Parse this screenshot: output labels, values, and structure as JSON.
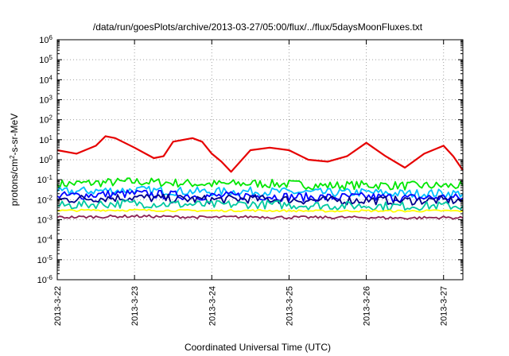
{
  "chart_data": {
    "type": "line",
    "title": "/data/run/goesPlots/archive/2013-03-27/05:00/flux/../flux/5daysMoonFluxes.txt",
    "xlabel": "Coordinated Universal Time (UTC)",
    "ylabel": "protons/cm2-s-sr-MeV",
    "ylabel_parts": {
      "pre": "protons/cm",
      "sup": "2",
      "post": "-s-sr-MeV"
    },
    "y_scale": "log",
    "ylim": [
      1e-06,
      1000000.0
    ],
    "xlim": [
      "2013-03-22T00:00",
      "2013-03-27T06:00"
    ],
    "grid": true,
    "legend": "none",
    "x_ticks": [
      "2013-3-22",
      "2013-3-23",
      "2013-3-24",
      "2013-3-25",
      "2013-3-26",
      "2013-3-27"
    ],
    "y_ticks": [
      {
        "value": 1e-06,
        "base": "10",
        "exp": "-6"
      },
      {
        "value": 1e-05,
        "base": "10",
        "exp": "-5"
      },
      {
        "value": 0.0001,
        "base": "10",
        "exp": "-4"
      },
      {
        "value": 0.001,
        "base": "10",
        "exp": "-3"
      },
      {
        "value": 0.01,
        "base": "10",
        "exp": "-2"
      },
      {
        "value": 0.1,
        "base": "10",
        "exp": "-1"
      },
      {
        "value": 1.0,
        "base": "10",
        "exp": "0"
      },
      {
        "value": 10.0,
        "base": "10",
        "exp": "1"
      },
      {
        "value": 100.0,
        "base": "10",
        "exp": "2"
      },
      {
        "value": 1000.0,
        "base": "10",
        "exp": "3"
      },
      {
        "value": 10000.0,
        "base": "10",
        "exp": "4"
      },
      {
        "value": 100000.0,
        "base": "10",
        "exp": "5"
      },
      {
        "value": 1000000.0,
        "base": "10",
        "exp": "6"
      }
    ],
    "series": [
      {
        "color": "#e60000",
        "x": [
          "2013-03-22T00:00",
          "2013-03-22T06:00",
          "2013-03-22T12:00",
          "2013-03-22T15:00",
          "2013-03-22T18:00",
          "2013-03-23T00:00",
          "2013-03-23T06:00",
          "2013-03-23T09:00",
          "2013-03-23T12:00",
          "2013-03-23T18:00",
          "2013-03-23T21:00",
          "2013-03-24T00:00",
          "2013-03-24T03:00",
          "2013-03-24T06:00",
          "2013-03-24T12:00",
          "2013-03-24T18:00",
          "2013-03-25T00:00",
          "2013-03-25T06:00",
          "2013-03-25T12:00",
          "2013-03-25T18:00",
          "2013-03-26T00:00",
          "2013-03-26T06:00",
          "2013-03-26T12:00",
          "2013-03-26T18:00",
          "2013-03-27T00:00",
          "2013-03-27T03:00",
          "2013-03-27T06:00"
        ],
        "y": [
          3,
          2,
          5,
          15,
          12,
          4,
          1.2,
          1.5,
          8,
          12,
          8,
          2,
          0.8,
          0.25,
          3,
          4,
          3,
          1,
          0.8,
          1.5,
          7,
          1.5,
          0.4,
          2,
          5,
          1.5,
          0.3
        ]
      },
      {
        "color": "#00e600",
        "x": [
          "2013-03-22T00:00",
          "2013-03-22T12:00",
          "2013-03-23T00:00",
          "2013-03-23T12:00",
          "2013-03-24T00:00",
          "2013-03-24T12:00",
          "2013-03-25T00:00",
          "2013-03-25T12:00",
          "2013-03-26T00:00",
          "2013-03-26T12:00",
          "2013-03-27T00:00",
          "2013-03-27T06:00"
        ],
        "y": [
          0.06,
          0.07,
          0.08,
          0.07,
          0.06,
          0.065,
          0.06,
          0.05,
          0.055,
          0.05,
          0.05,
          0.05
        ]
      },
      {
        "color": "#00bfff",
        "x": [
          "2013-03-22T00:00",
          "2013-03-22T12:00",
          "2013-03-23T00:00",
          "2013-03-23T12:00",
          "2013-03-24T00:00",
          "2013-03-24T12:00",
          "2013-03-25T00:00",
          "2013-03-25T12:00",
          "2013-03-26T00:00",
          "2013-03-26T12:00",
          "2013-03-27T00:00",
          "2013-03-27T06:00"
        ],
        "y": [
          0.025,
          0.028,
          0.03,
          0.027,
          0.025,
          0.026,
          0.024,
          0.022,
          0.023,
          0.02,
          0.021,
          0.02
        ]
      },
      {
        "color": "#0000ff",
        "x": [
          "2013-03-22T00:00",
          "2013-03-22T12:00",
          "2013-03-23T00:00",
          "2013-03-23T12:00",
          "2013-03-24T00:00",
          "2013-03-24T12:00",
          "2013-03-25T00:00",
          "2013-03-25T12:00",
          "2013-03-26T00:00",
          "2013-03-26T12:00",
          "2013-03-27T00:00",
          "2013-03-27T06:00"
        ],
        "y": [
          0.015,
          0.018,
          0.02,
          0.017,
          0.015,
          0.016,
          0.014,
          0.013,
          0.014,
          0.012,
          0.013,
          0.012
        ]
      },
      {
        "color": "#00008b",
        "x": [
          "2013-03-22T00:00",
          "2013-03-22T12:00",
          "2013-03-23T00:00",
          "2013-03-23T12:00",
          "2013-03-24T00:00",
          "2013-03-24T12:00",
          "2013-03-25T00:00",
          "2013-03-25T12:00",
          "2013-03-26T00:00",
          "2013-03-26T12:00",
          "2013-03-27T00:00",
          "2013-03-27T06:00"
        ],
        "y": [
          0.01,
          0.012,
          0.013,
          0.011,
          0.01,
          0.011,
          0.01,
          0.009,
          0.0095,
          0.009,
          0.0095,
          0.009
        ]
      },
      {
        "color": "#00c8a0",
        "x": [
          "2013-03-22T00:00",
          "2013-03-22T12:00",
          "2013-03-23T00:00",
          "2013-03-23T12:00",
          "2013-03-24T00:00",
          "2013-03-24T12:00",
          "2013-03-25T00:00",
          "2013-03-25T12:00",
          "2013-03-26T00:00",
          "2013-03-26T12:00",
          "2013-03-27T00:00",
          "2013-03-27T06:00"
        ],
        "y": [
          0.005,
          0.006,
          0.0065,
          0.006,
          0.0055,
          0.006,
          0.0055,
          0.005,
          0.005,
          0.0048,
          0.005,
          0.0048
        ]
      },
      {
        "color": "#ffff00",
        "x": [
          "2013-03-22T00:00",
          "2013-03-22T12:00",
          "2013-03-23T00:00",
          "2013-03-23T12:00",
          "2013-03-24T00:00",
          "2013-03-24T12:00",
          "2013-03-25T00:00",
          "2013-03-25T12:00",
          "2013-03-26T00:00",
          "2013-03-26T12:00",
          "2013-03-27T00:00",
          "2013-03-27T06:00"
        ],
        "y": [
          0.0028,
          0.003,
          0.003,
          0.0029,
          0.0028,
          0.0029,
          0.0028,
          0.0027,
          0.0028,
          0.0027,
          0.0028,
          0.0027
        ]
      },
      {
        "color": "#8b2252",
        "x": [
          "2013-03-22T00:00",
          "2013-03-22T12:00",
          "2013-03-23T00:00",
          "2013-03-23T12:00",
          "2013-03-24T00:00",
          "2013-03-24T12:00",
          "2013-03-25T00:00",
          "2013-03-25T12:00",
          "2013-03-26T00:00",
          "2013-03-26T12:00",
          "2013-03-27T00:00",
          "2013-03-27T06:00"
        ],
        "y": [
          0.0013,
          0.0014,
          0.0015,
          0.0014,
          0.0013,
          0.0014,
          0.0013,
          0.0013,
          0.0013,
          0.0012,
          0.0013,
          0.0012
        ]
      }
    ]
  }
}
